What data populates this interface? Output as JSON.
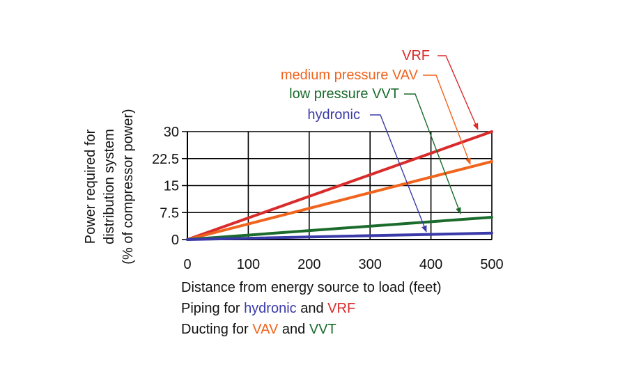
{
  "colors": {
    "vrf": "#d92b2b",
    "vav": "#f0641e",
    "vvt": "#1a6b2c",
    "hydronic": "#3a3aa8",
    "axis": "#000000"
  },
  "captions": {
    "line1": "Distance from energy source to load (feet)",
    "line2_a": "Piping for ",
    "line2_hydronic": "hydronic",
    "line2_and": " and ",
    "line2_vrf": "VRF",
    "line3_a": "Ducting for ",
    "line3_vav": "VAV",
    "line3_and": " and ",
    "line3_vvt": "VVT"
  },
  "chart_data": {
    "type": "line",
    "xlabel": "Distance from energy source to load (feet)",
    "ylabel": [
      "Power required for",
      "distribution system",
      "(% of compressor power)"
    ],
    "x_ticks": [
      "0",
      "100",
      "200",
      "300",
      "400",
      "500"
    ],
    "y_ticks": [
      "0",
      "7.5",
      "15",
      "22.5",
      "30"
    ],
    "xlim": [
      0,
      500
    ],
    "ylim": [
      0,
      30
    ],
    "grid": true,
    "series": [
      {
        "name": "VRF",
        "color": "#d92b2b",
        "x": [
          0,
          500
        ],
        "y": [
          0,
          30
        ]
      },
      {
        "name": "medium pressure VAV",
        "color": "#f0641e",
        "x": [
          0,
          500
        ],
        "y": [
          0,
          21.7
        ]
      },
      {
        "name": "low pressure VVT",
        "color": "#1a6b2c",
        "x": [
          0,
          500
        ],
        "y": [
          0,
          6.2
        ]
      },
      {
        "name": "hydronic",
        "color": "#3a3aa8",
        "x": [
          0,
          500
        ],
        "y": [
          0,
          1.8
        ]
      }
    ]
  }
}
